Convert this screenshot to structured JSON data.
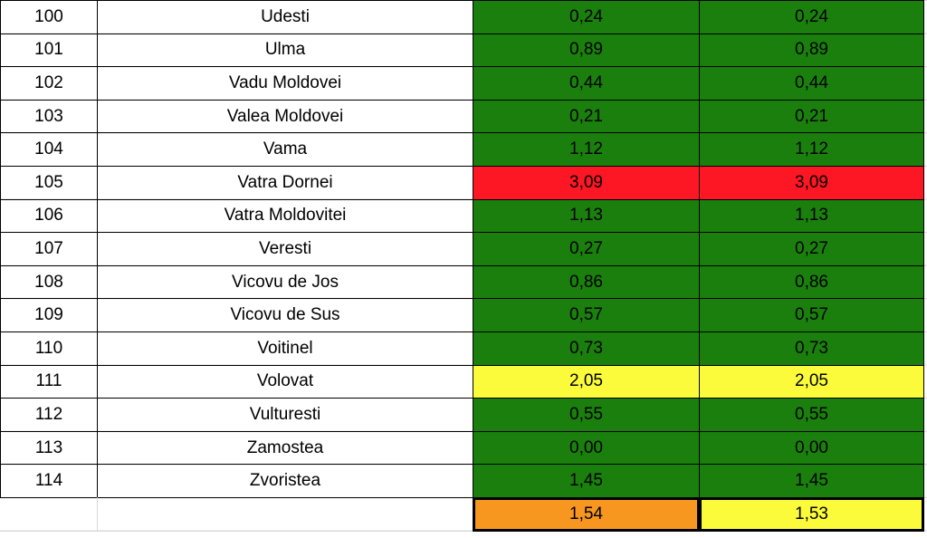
{
  "table": {
    "rows": [
      {
        "no": "100",
        "name": "Udesti",
        "values": [
          "0,24",
          "0,24"
        ],
        "color": "#1b7f0e"
      },
      {
        "no": "101",
        "name": "Ulma",
        "values": [
          "0,89",
          "0,89"
        ],
        "color": "#1b7f0e"
      },
      {
        "no": "102",
        "name": "Vadu Moldovei",
        "values": [
          "0,44",
          "0,44"
        ],
        "color": "#1b7f0e"
      },
      {
        "no": "103",
        "name": "Valea Moldovei",
        "values": [
          "0,21",
          "0,21"
        ],
        "color": "#1b7f0e"
      },
      {
        "no": "104",
        "name": "Vama",
        "values": [
          "1,12",
          "1,12"
        ],
        "color": "#1b7f0e"
      },
      {
        "no": "105",
        "name": "Vatra Dornei",
        "values": [
          "3,09",
          "3,09"
        ],
        "color": "#fd1623"
      },
      {
        "no": "106",
        "name": "Vatra Moldovitei",
        "values": [
          "1,13",
          "1,13"
        ],
        "color": "#1b7f0e"
      },
      {
        "no": "107",
        "name": "Veresti",
        "values": [
          "0,27",
          "0,27"
        ],
        "color": "#1b7f0e"
      },
      {
        "no": "108",
        "name": "Vicovu de Jos",
        "values": [
          "0,86",
          "0,86"
        ],
        "color": "#1b7f0e"
      },
      {
        "no": "109",
        "name": "Vicovu de Sus",
        "values": [
          "0,57",
          "0,57"
        ],
        "color": "#1b7f0e"
      },
      {
        "no": "110",
        "name": "Voitinel",
        "values": [
          "0,73",
          "0,73"
        ],
        "color": "#1b7f0e"
      },
      {
        "no": "111",
        "name": "Volovat",
        "values": [
          "2,05",
          "2,05"
        ],
        "color": "#fbfb3c"
      },
      {
        "no": "112",
        "name": "Vulturesti",
        "values": [
          "0,55",
          "0,55"
        ],
        "color": "#1b7f0e"
      },
      {
        "no": "113",
        "name": "Zamostea",
        "values": [
          "0,00",
          "0,00"
        ],
        "color": "#1b7f0e"
      },
      {
        "no": "114",
        "name": "Zvoristea",
        "values": [
          "1,45",
          "1,45"
        ],
        "color": "#1b7f0e"
      }
    ],
    "total": {
      "values": [
        "1,54",
        "1,53"
      ],
      "colors": [
        "#f7971f",
        "#fbfb3c"
      ]
    }
  }
}
